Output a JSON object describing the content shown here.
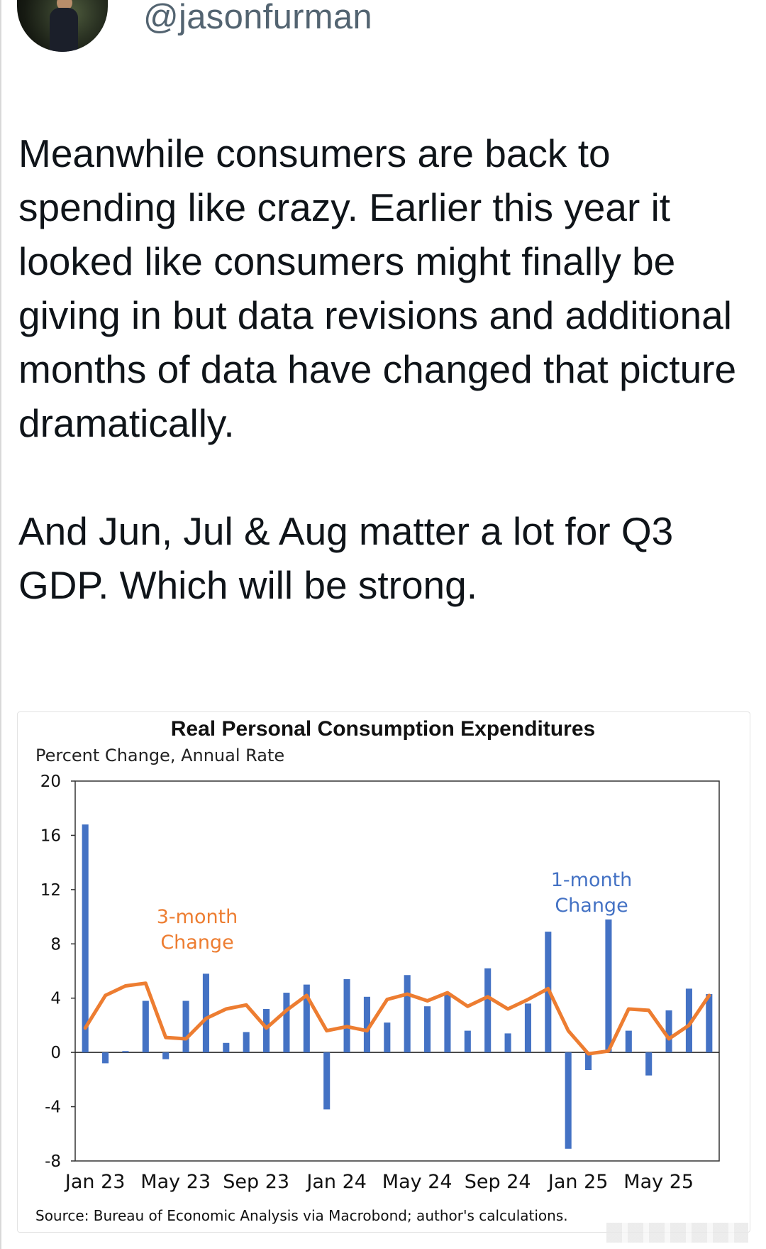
{
  "tweet": {
    "handle": "@jasonfurman",
    "paragraphs": [
      "Meanwhile consumers are back to spending like crazy. Earlier this year it looked like consumers might finally be giving in but data revisions and additional months of data have changed that picture dramatically.",
      "And Jun, Jul & Aug matter a lot for Q3 GDP. Which will be strong."
    ]
  },
  "icons": {
    "avatar": "profile-photo-avatar"
  },
  "colors": {
    "bars": "#4472c4",
    "line": "#ed7d31",
    "handle": "#536471"
  },
  "chart_data": {
    "type": "bar",
    "title": "Real Personal Consumption Expenditures",
    "ylabel": "Percent Change, Annual Rate",
    "ylim": [
      -8,
      20
    ],
    "yticks": [
      20,
      16,
      12,
      8,
      4,
      0,
      -4,
      -8
    ],
    "x_tick_labels": [
      "Jan 23",
      "May 23",
      "Sep 23",
      "Jan 24",
      "May 24",
      "Sep 24",
      "Jan 25",
      "May 25"
    ],
    "months": [
      "Jan 23",
      "Feb 23",
      "Mar 23",
      "Apr 23",
      "May 23",
      "Jun 23",
      "Jul 23",
      "Aug 23",
      "Sep 23",
      "Oct 23",
      "Nov 23",
      "Dec 23",
      "Jan 24",
      "Feb 24",
      "Mar 24",
      "Apr 24",
      "May 24",
      "Jun 24",
      "Jul 24",
      "Aug 24",
      "Sep 24",
      "Oct 24",
      "Nov 24",
      "Dec 24",
      "Jan 25",
      "Feb 25",
      "Mar 25",
      "Apr 25",
      "May 25",
      "Jun 25",
      "Jul 25",
      "Aug 25"
    ],
    "series": [
      {
        "name": "1-month Change",
        "type": "bar",
        "values": [
          16.8,
          -0.8,
          0.1,
          3.8,
          -0.5,
          3.8,
          5.8,
          0.7,
          1.5,
          3.2,
          4.4,
          5.0,
          -4.2,
          5.4,
          4.1,
          2.2,
          5.7,
          3.4,
          4.4,
          1.6,
          6.2,
          1.4,
          3.6,
          8.9,
          -7.1,
          -1.3,
          9.8,
          1.6,
          -1.7,
          3.1,
          4.7,
          4.3
        ]
      },
      {
        "name": "3-month Change",
        "type": "line",
        "values": [
          1.8,
          4.2,
          4.9,
          5.1,
          1.1,
          1.0,
          2.5,
          3.2,
          3.5,
          1.8,
          3.1,
          4.2,
          1.6,
          1.9,
          1.6,
          3.9,
          4.3,
          3.8,
          4.4,
          3.4,
          4.1,
          3.2,
          3.9,
          4.7,
          1.6,
          -0.1,
          0.1,
          3.2,
          3.1,
          1.0,
          2.0,
          4.2
        ]
      }
    ],
    "annotations": [
      {
        "text": [
          "3-month",
          "Change"
        ],
        "series": "3-month Change"
      },
      {
        "text": [
          "1-month",
          "Change"
        ],
        "series": "1-month Change"
      }
    ],
    "grid": false,
    "source": "Source: Bureau of Economic Analysis via Macrobond; author's calculations."
  }
}
